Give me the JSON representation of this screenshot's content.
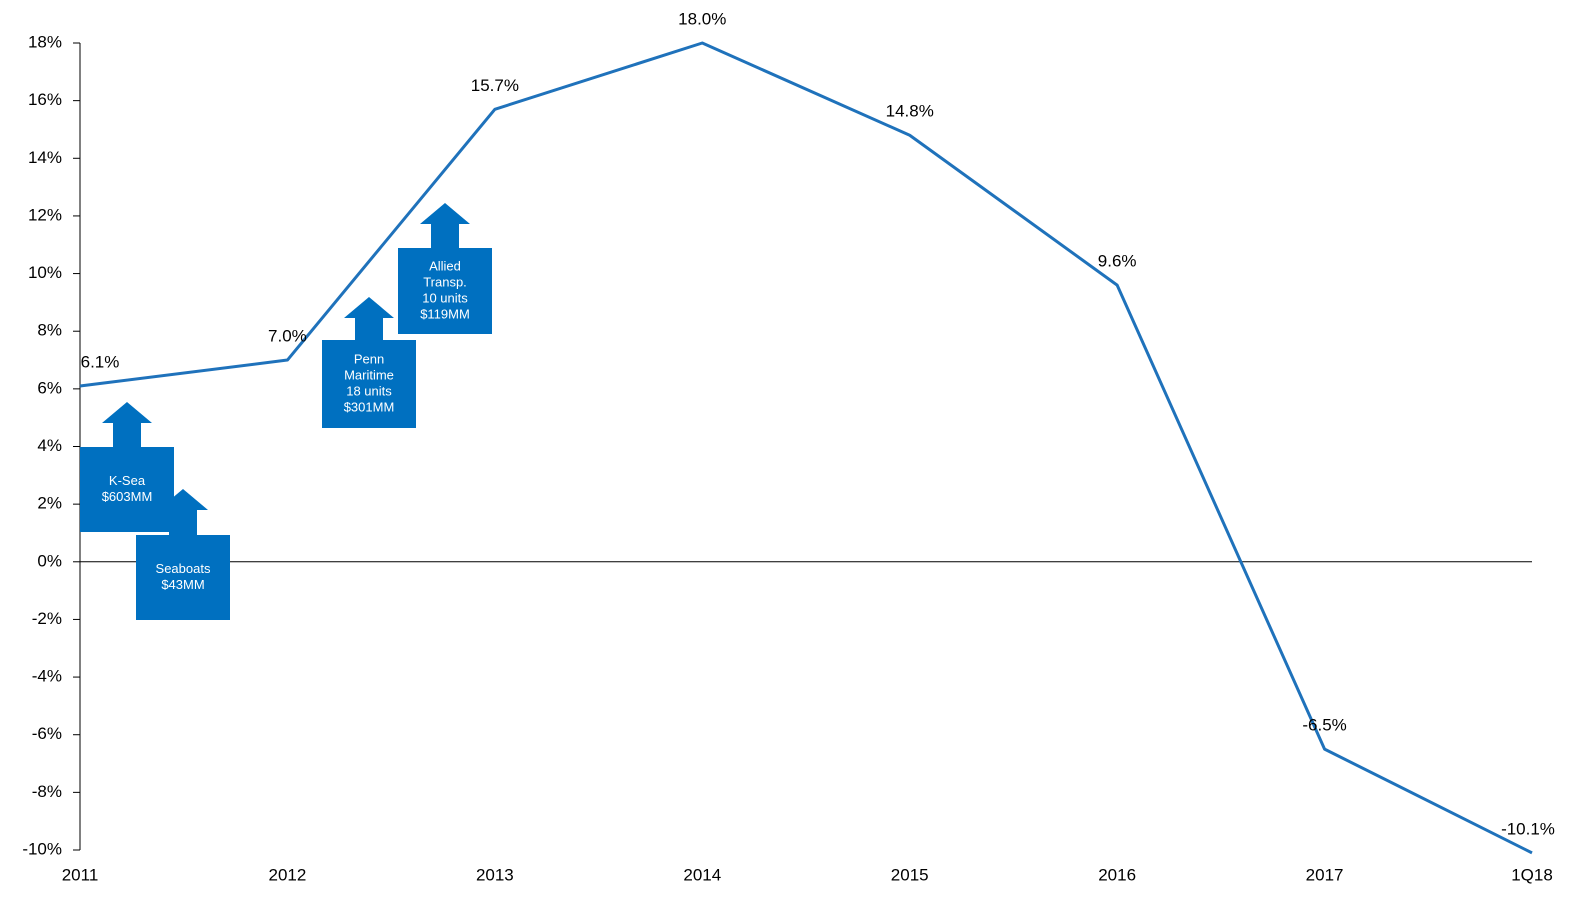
{
  "chart_data": {
    "type": "line",
    "categories": [
      "2011",
      "2012",
      "2013",
      "2014",
      "2015",
      "2016",
      "2017",
      "1Q18"
    ],
    "series": [
      {
        "color": "#1f72bb",
        "values": [
          6.1,
          7.0,
          15.7,
          18.0,
          14.8,
          9.6,
          -6.5,
          -10.1
        ],
        "value_labels": [
          "6.1%",
          "7.0%",
          "15.7%",
          "18.0%",
          "14.8%",
          "9.6%",
          "-6.5%",
          "-10.1%"
        ]
      }
    ],
    "ylim": [
      -10,
      18
    ],
    "yticks": [
      {
        "value": -10,
        "label": "-10%"
      },
      {
        "value": -8,
        "label": "-8%"
      },
      {
        "value": -6,
        "label": "-6%"
      },
      {
        "value": -4,
        "label": "-4%"
      },
      {
        "value": -2,
        "label": "-2%"
      },
      {
        "value": 0,
        "label": "0%"
      },
      {
        "value": 2,
        "label": "2%"
      },
      {
        "value": 4,
        "label": "4%"
      },
      {
        "value": 6,
        "label": "6%"
      },
      {
        "value": 8,
        "label": "8%"
      },
      {
        "value": 10,
        "label": "10%"
      },
      {
        "value": 12,
        "label": "12%"
      },
      {
        "value": 14,
        "label": "14%"
      },
      {
        "value": 16,
        "label": "16%"
      },
      {
        "value": 18,
        "label": "18%"
      }
    ],
    "annotations": [
      {
        "lines": [
          "K-Sea",
          "$603MM"
        ]
      },
      {
        "lines": [
          "Seaboats",
          "$43MM"
        ]
      },
      {
        "lines": [
          "Penn",
          "Maritime",
          "18 units",
          "$301MM"
        ]
      },
      {
        "lines": [
          "Allied",
          "Transp.",
          "10 units",
          "$119MM"
        ]
      }
    ],
    "annotation_color": "#0070c0"
  }
}
